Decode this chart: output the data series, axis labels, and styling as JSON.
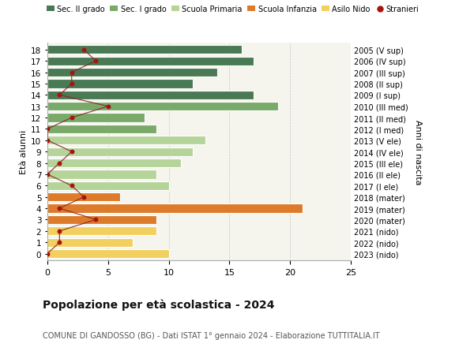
{
  "ages": [
    18,
    17,
    16,
    15,
    14,
    13,
    12,
    11,
    10,
    9,
    8,
    7,
    6,
    5,
    4,
    3,
    2,
    1,
    0
  ],
  "right_labels": [
    "2005 (V sup)",
    "2006 (IV sup)",
    "2007 (III sup)",
    "2008 (II sup)",
    "2009 (I sup)",
    "2010 (III med)",
    "2011 (II med)",
    "2012 (I med)",
    "2013 (V ele)",
    "2014 (IV ele)",
    "2015 (III ele)",
    "2016 (II ele)",
    "2017 (I ele)",
    "2018 (mater)",
    "2019 (mater)",
    "2020 (mater)",
    "2021 (nido)",
    "2022 (nido)",
    "2023 (nido)"
  ],
  "bar_values": [
    16,
    17,
    14,
    12,
    17,
    19,
    8,
    9,
    13,
    12,
    11,
    9,
    10,
    6,
    21,
    9,
    9,
    7,
    10
  ],
  "bar_colors": [
    "#4a7a54",
    "#4a7a54",
    "#4a7a54",
    "#4a7a54",
    "#4a7a54",
    "#7aaa6a",
    "#7aaa6a",
    "#7aaa6a",
    "#b5d49a",
    "#b5d49a",
    "#b5d49a",
    "#b5d49a",
    "#b5d49a",
    "#de7b2a",
    "#de7b2a",
    "#de7b2a",
    "#f2d060",
    "#f2d060",
    "#f2d060"
  ],
  "stranieri_values": [
    3,
    4,
    2,
    2,
    1,
    5,
    2,
    0,
    0,
    2,
    1,
    0,
    2,
    3,
    1,
    4,
    1,
    1,
    0
  ],
  "legend_labels": [
    "Sec. II grado",
    "Sec. I grado",
    "Scuola Primaria",
    "Scuola Infanzia",
    "Asilo Nido",
    "Stranieri"
  ],
  "legend_colors": [
    "#4a7a54",
    "#7aaa6a",
    "#b5d49a",
    "#de7b2a",
    "#f2d060",
    "#aa1111"
  ],
  "title": "Popolazione per età scolastica - 2024",
  "subtitle": "COMUNE DI GANDOSSO (BG) - Dati ISTAT 1° gennaio 2024 - Elaborazione TUTTITALIA.IT",
  "ylabel_left": "Età alunni",
  "ylabel_right": "Anni di nascita",
  "xlim": [
    0,
    25
  ],
  "bg_color": "#ffffff",
  "plot_bg_color": "#f5f5ee"
}
